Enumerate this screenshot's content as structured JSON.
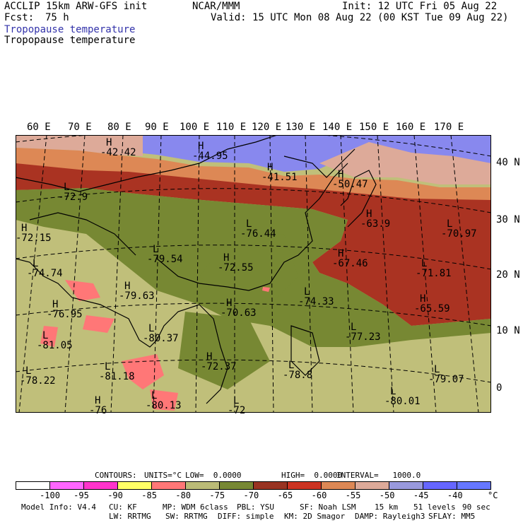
{
  "header": {
    "model": "ACCLIP 15km ARW-GFS init",
    "org": "NCAR/MMM",
    "init": "Init: 12 UTC Fri 05 Aug 22",
    "fcst_label": "Fcst:",
    "fcst_value": "75 h",
    "valid": "Valid: 15 UTC Mon 08 Aug 22 (00 KST Tue 09 Aug 22)",
    "field_title_1": "Tropopause temperature",
    "field_title_2": "Tropopause temperature"
  },
  "map": {
    "lon_labels": [
      "60 E",
      "70 E",
      "80 E",
      "90 E",
      "100 E",
      "110 E",
      "120 E",
      "130 E",
      "140 E",
      "150 E",
      "160 E",
      "170 E"
    ],
    "lat_labels": [
      "40 N",
      "30 N",
      "20 N",
      "10 N",
      "0"
    ],
    "annotations": [
      {
        "letter": "H",
        "value": "-42.42"
      },
      {
        "letter": "H",
        "value": "-44.95"
      },
      {
        "letter": "H",
        "value": "-41.51"
      },
      {
        "letter": "H",
        "value": "-50.47"
      },
      {
        "letter": "L",
        "value": "-72.9"
      },
      {
        "letter": "H",
        "value": "-72.15"
      },
      {
        "letter": "L",
        "value": "-76.44"
      },
      {
        "letter": "H",
        "value": "-63.9"
      },
      {
        "letter": "L",
        "value": "-70.97"
      },
      {
        "letter": "L",
        "value": "-74.74"
      },
      {
        "letter": "L",
        "value": "-79.54"
      },
      {
        "letter": "H",
        "value": "-72.55"
      },
      {
        "letter": "H",
        "value": "-67.46"
      },
      {
        "letter": "L",
        "value": "-71.81"
      },
      {
        "letter": "H",
        "value": "-79.63"
      },
      {
        "letter": "H",
        "value": "-76.95"
      },
      {
        "letter": "H",
        "value": "-70.63"
      },
      {
        "letter": "L",
        "value": "-74.33"
      },
      {
        "letter": "H",
        "value": "-65.59"
      },
      {
        "letter": "L",
        "value": "-77.23"
      },
      {
        "letter": "L",
        "value": "-81.05"
      },
      {
        "letter": "L",
        "value": "-80.37"
      },
      {
        "letter": "H",
        "value": "-72.37"
      },
      {
        "letter": "L",
        "value": "-78.8"
      },
      {
        "letter": "L",
        "value": "-78.22"
      },
      {
        "letter": "L",
        "value": "-81.18"
      },
      {
        "letter": "L",
        "value": "-79.07"
      },
      {
        "letter": "H",
        "value": "-76"
      },
      {
        "letter": "L",
        "value": "-80.13"
      },
      {
        "letter": "L",
        "value": "-72"
      },
      {
        "letter": "L",
        "value": "-80.01"
      }
    ]
  },
  "contour_info": {
    "contours": "CONTOURS:",
    "units": "UNITS=°C",
    "low": "LOW=  0.0000",
    "high": "HIGH=  0.0000",
    "interval": "INTERVAL=   1000.0"
  },
  "legend": {
    "colors": [
      "#ffffff",
      "#ff66ff",
      "#ff33cc",
      "#ffff66",
      "#ff7777",
      "#bbbb77",
      "#778833",
      "#993322",
      "#cc3322",
      "#dd8855",
      "#ddaa99",
      "#9999dd",
      "#6666ff",
      "#6677ff"
    ],
    "labels": [
      "-100",
      "-95",
      "-90",
      "-85",
      "-80",
      "-75",
      "-70",
      "-65",
      "-60",
      "-55",
      "-50",
      "-45",
      "-40"
    ],
    "unit": "°C"
  },
  "footer": {
    "line1": [
      "Model Info: V4.4",
      "CU: KF",
      "MP: WDM 6class",
      "PBL: YSU",
      "SF: Noah LSM",
      "15 km",
      "51 levels",
      "90 sec"
    ],
    "line2": [
      "LW: RRTMG",
      "SW: RRTMG",
      "DIFF: simple",
      "KM: 2D Smagor",
      "DAMP: Rayleigh3",
      "SFLAY: MM5"
    ]
  }
}
